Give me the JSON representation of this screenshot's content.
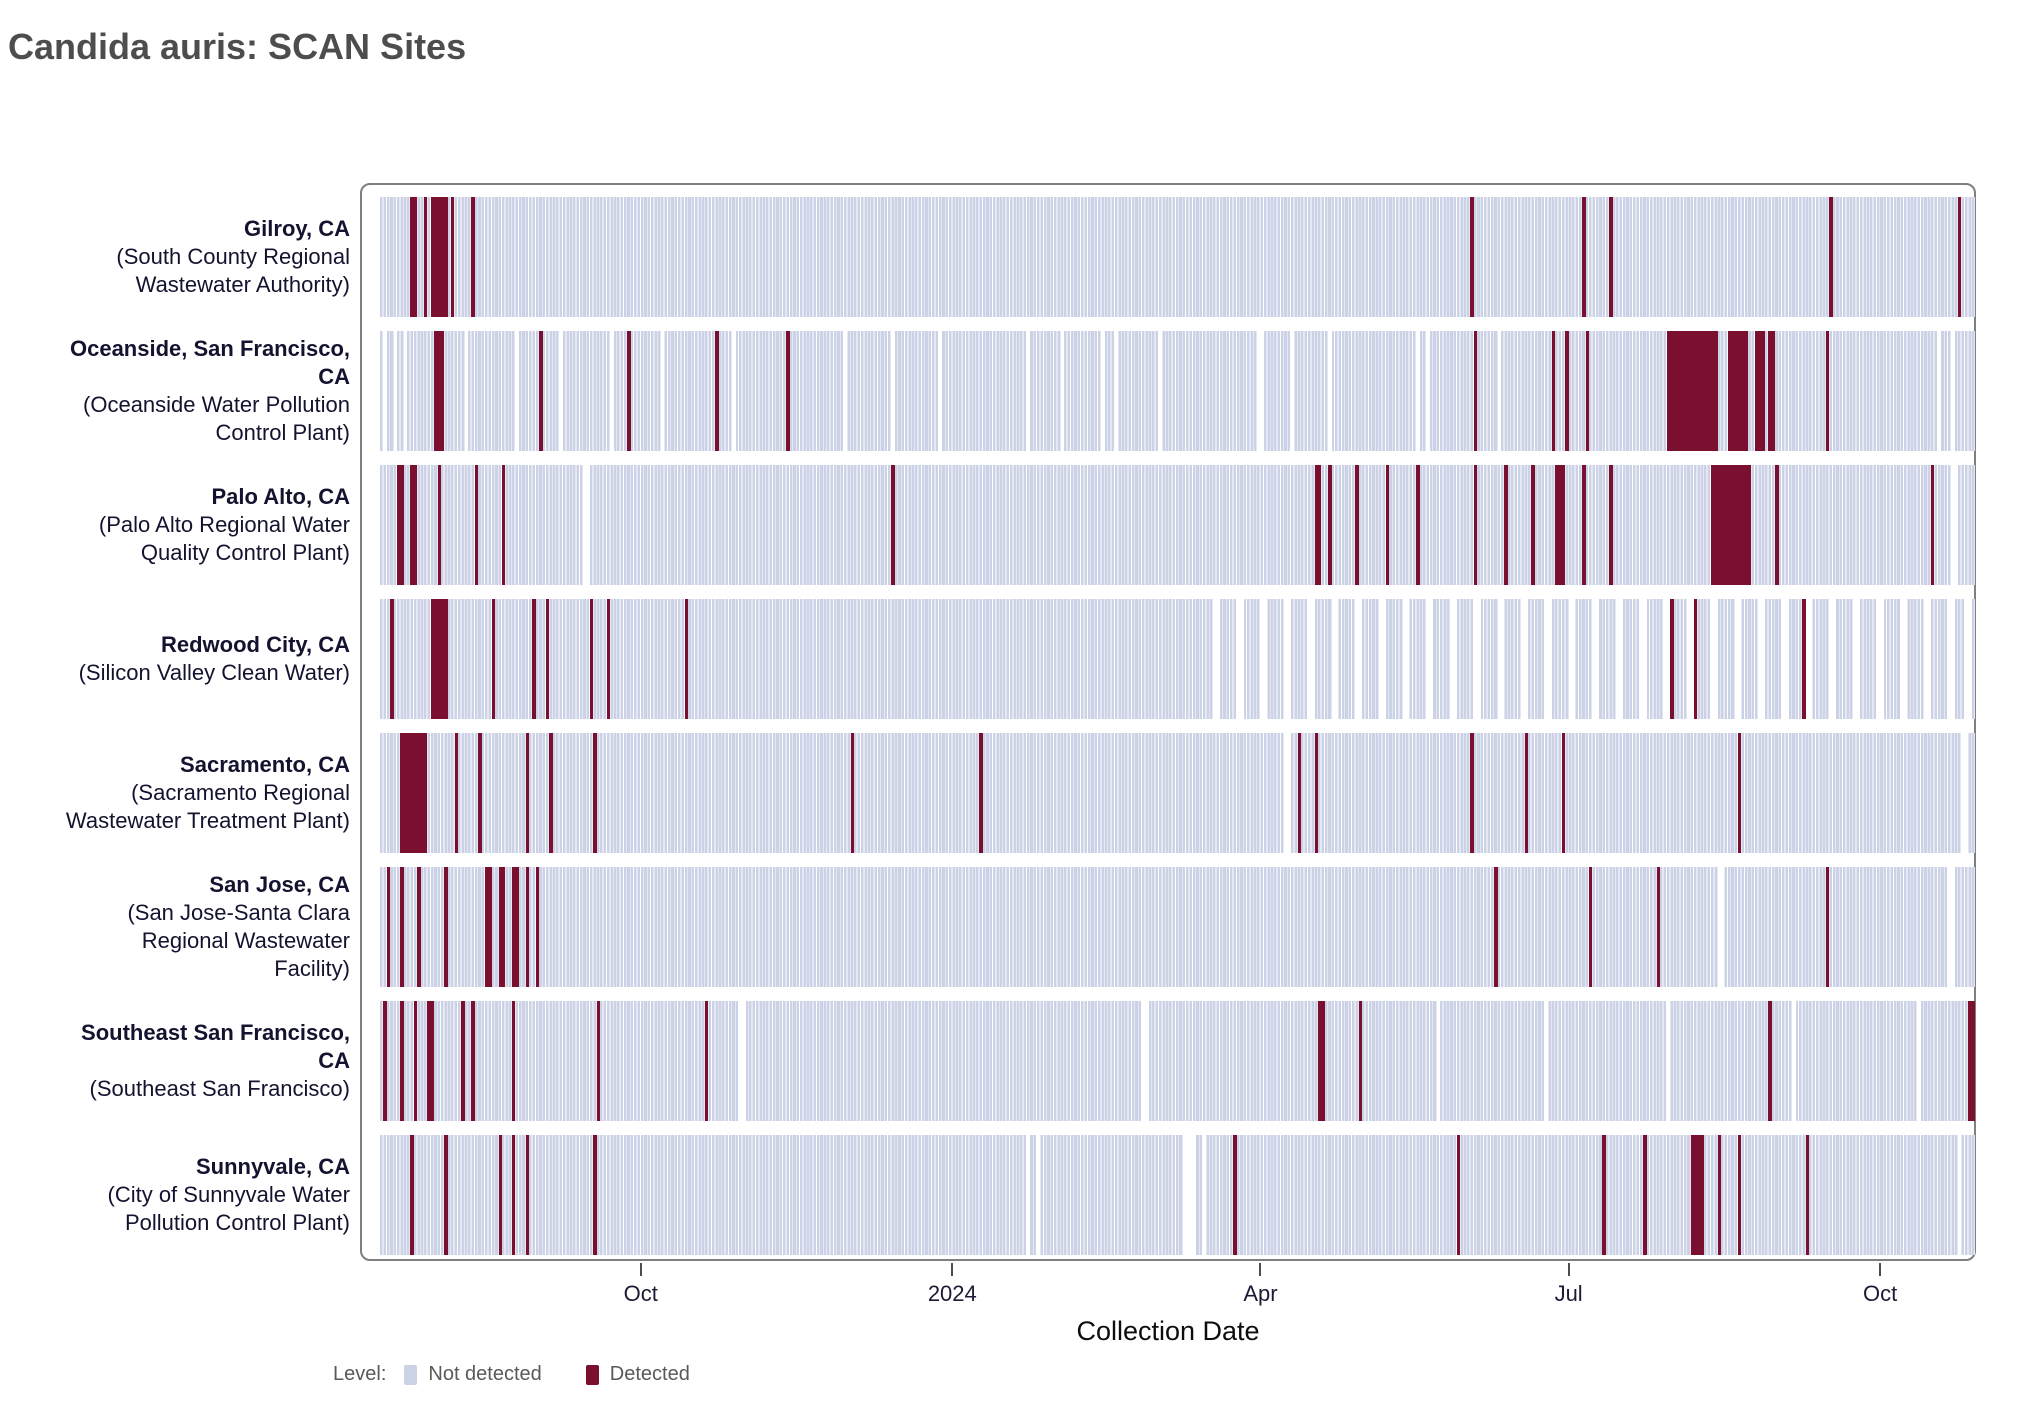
{
  "page": {
    "title": "Candida auris: SCAN Sites"
  },
  "chart_data": {
    "type": "heatmap",
    "title": "Candida auris: SCAN Sites",
    "xlabel": "Collection Date",
    "legend": {
      "label": "Level:",
      "items": [
        {
          "label": "Not detected",
          "color": "#cbd2e6"
        },
        {
          "label": "Detected",
          "color": "#7a0f2f"
        }
      ]
    },
    "colors": {
      "not_detected": "#cbd2e6",
      "detected": "#7a0f2f",
      "gap": "#ffffff"
    },
    "timeline": {
      "total_days": 471,
      "ticks": [
        {
          "label": "Oct",
          "day": 77
        },
        {
          "label": "2024",
          "day": 169
        },
        {
          "label": "Apr",
          "day": 260
        },
        {
          "label": "Jul",
          "day": 351
        },
        {
          "label": "Oct",
          "day": 443
        }
      ]
    },
    "sites": [
      {
        "city": "Gilroy, CA",
        "plant": "(South County Regional Wastewater Authority)",
        "detected": [
          [
            9,
            2
          ],
          [
            13,
            1
          ],
          [
            15,
            5
          ],
          [
            21,
            1
          ],
          [
            27,
            1
          ],
          [
            322,
            1
          ],
          [
            355,
            1
          ],
          [
            363,
            1
          ],
          [
            428,
            1
          ],
          [
            466,
            1
          ]
        ],
        "gaps": []
      },
      {
        "city": "Oceanside, San Francisco, CA",
        "plant": "(Oceanside Water Pollution Control Plant)",
        "detected": [
          [
            16,
            3
          ],
          [
            47,
            1
          ],
          [
            73,
            1
          ],
          [
            99,
            1
          ],
          [
            120,
            1
          ],
          [
            323,
            1
          ],
          [
            346,
            1
          ],
          [
            350,
            1
          ],
          [
            356,
            1
          ],
          [
            380,
            15
          ],
          [
            398,
            6
          ],
          [
            406,
            3
          ],
          [
            410,
            2
          ],
          [
            427,
            1
          ]
        ],
        "gaps": [
          [
            1,
            1
          ],
          [
            4,
            1
          ],
          [
            7,
            1
          ],
          [
            25,
            1
          ],
          [
            40,
            1
          ],
          [
            53,
            1
          ],
          [
            68,
            1
          ],
          [
            83,
            1
          ],
          [
            104,
            1
          ],
          [
            137,
            1
          ],
          [
            151,
            1
          ],
          [
            165,
            1
          ],
          [
            191,
            1
          ],
          [
            201,
            1
          ],
          [
            213,
            1
          ],
          [
            217,
            1
          ],
          [
            230,
            1
          ],
          [
            259,
            2
          ],
          [
            269,
            1
          ],
          [
            280,
            1
          ],
          [
            306,
            1
          ],
          [
            309,
            1
          ],
          [
            330,
            1
          ],
          [
            460,
            1
          ],
          [
            464,
            1
          ]
        ]
      },
      {
        "city": "Palo Alto, CA",
        "plant": "(Palo Alto Regional Water Quality Control Plant)",
        "detected": [
          [
            5,
            2
          ],
          [
            9,
            2
          ],
          [
            17,
            1
          ],
          [
            28,
            1
          ],
          [
            36,
            1
          ],
          [
            151,
            1
          ],
          [
            276,
            2
          ],
          [
            280,
            1
          ],
          [
            288,
            1
          ],
          [
            297,
            1
          ],
          [
            306,
            1
          ],
          [
            323,
            1
          ],
          [
            332,
            1
          ],
          [
            340,
            1
          ],
          [
            347,
            3
          ],
          [
            355,
            1
          ],
          [
            363,
            1
          ],
          [
            393,
            12
          ],
          [
            412,
            1
          ],
          [
            458,
            1
          ]
        ],
        "gaps": [
          [
            60,
            2
          ],
          [
            464,
            2
          ]
        ]
      },
      {
        "city": "Redwood City, CA",
        "plant": "(Silicon Valley Clean Water)",
        "detected": [
          [
            3,
            1
          ],
          [
            15,
            5
          ],
          [
            33,
            1
          ],
          [
            45,
            1
          ],
          [
            49,
            1
          ],
          [
            62,
            1
          ],
          [
            67,
            1
          ],
          [
            90,
            1
          ],
          [
            381,
            1
          ],
          [
            388,
            1
          ],
          [
            420,
            1
          ]
        ],
        "gaps": [
          [
            246,
            2
          ],
          [
            253,
            2
          ],
          [
            260,
            2
          ],
          [
            267,
            2
          ],
          [
            274,
            2
          ],
          [
            281,
            2
          ],
          [
            288,
            2
          ],
          [
            295,
            2
          ],
          [
            302,
            2
          ],
          [
            309,
            2
          ],
          [
            316,
            2
          ],
          [
            323,
            2
          ],
          [
            330,
            2
          ],
          [
            337,
            2
          ],
          [
            344,
            2
          ],
          [
            351,
            2
          ],
          [
            358,
            2
          ],
          [
            365,
            2
          ],
          [
            372,
            2
          ],
          [
            379,
            2
          ],
          [
            386,
            2
          ],
          [
            393,
            2
          ],
          [
            400,
            2
          ],
          [
            407,
            2
          ],
          [
            414,
            2
          ],
          [
            421,
            2
          ],
          [
            428,
            2
          ],
          [
            435,
            2
          ],
          [
            442,
            2
          ],
          [
            449,
            2
          ],
          [
            456,
            2
          ],
          [
            463,
            2
          ],
          [
            468,
            2
          ]
        ]
      },
      {
        "city": "Sacramento, CA",
        "plant": "(Sacramento Regional Wastewater Treatment Plant)",
        "detected": [
          [
            6,
            8
          ],
          [
            22,
            1
          ],
          [
            29,
            1
          ],
          [
            43,
            1
          ],
          [
            50,
            1
          ],
          [
            63,
            1
          ],
          [
            139,
            1
          ],
          [
            177,
            1
          ],
          [
            271,
            1
          ],
          [
            276,
            1
          ],
          [
            322,
            1
          ],
          [
            338,
            1
          ],
          [
            349,
            1
          ],
          [
            401,
            1
          ]
        ],
        "gaps": [
          [
            267,
            2
          ],
          [
            467,
            2
          ]
        ]
      },
      {
        "city": "San Jose, CA",
        "plant": "(San Jose-Santa Clara Regional Wastewater Facility)",
        "detected": [
          [
            2,
            1
          ],
          [
            6,
            1
          ],
          [
            11,
            1
          ],
          [
            19,
            1
          ],
          [
            31,
            2
          ],
          [
            35,
            2
          ],
          [
            39,
            2
          ],
          [
            43,
            1
          ],
          [
            46,
            1
          ],
          [
            329,
            1
          ],
          [
            357,
            1
          ],
          [
            377,
            1
          ],
          [
            427,
            1
          ]
        ],
        "gaps": [
          [
            395,
            2
          ],
          [
            463,
            2
          ]
        ]
      },
      {
        "city": "Southeast San Francisco, CA",
        "plant": "(Southeast San Francisco)",
        "detected": [
          [
            1,
            1
          ],
          [
            6,
            1
          ],
          [
            10,
            1
          ],
          [
            14,
            2
          ],
          [
            24,
            1
          ],
          [
            27,
            1
          ],
          [
            39,
            1
          ],
          [
            64,
            1
          ],
          [
            96,
            1
          ],
          [
            277,
            2
          ],
          [
            289,
            1
          ],
          [
            410,
            1
          ],
          [
            469,
            2
          ]
        ],
        "gaps": [
          [
            106,
            2
          ],
          [
            225,
            2
          ],
          [
            312,
            1
          ],
          [
            344,
            1
          ],
          [
            380,
            1
          ],
          [
            417,
            1
          ],
          [
            454,
            1
          ]
        ]
      },
      {
        "city": "Sunnyvale, CA",
        "plant": "(City of Sunnyvale Water Pollution Control Plant)",
        "detected": [
          [
            9,
            1
          ],
          [
            19,
            1
          ],
          [
            35,
            1
          ],
          [
            39,
            1
          ],
          [
            43,
            1
          ],
          [
            63,
            1
          ],
          [
            252,
            1
          ],
          [
            318,
            1
          ],
          [
            361,
            1
          ],
          [
            373,
            1
          ],
          [
            387,
            4
          ],
          [
            395,
            1
          ],
          [
            401,
            1
          ],
          [
            421,
            1
          ]
        ],
        "gaps": [
          [
            191,
            1
          ],
          [
            194,
            1
          ],
          [
            237,
            4
          ],
          [
            243,
            1
          ],
          [
            466,
            1
          ]
        ]
      }
    ]
  }
}
